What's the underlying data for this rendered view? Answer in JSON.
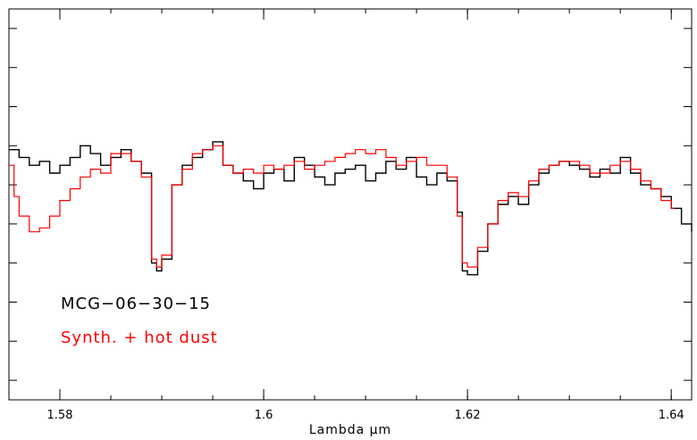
{
  "chart_data": {
    "type": "line",
    "title": "",
    "xlabel": "Lambda μm",
    "ylabel": "",
    "xlim": [
      1.575,
      1.642
    ],
    "ylim": [
      0,
      1
    ],
    "x_ticks": [
      {
        "value": 1.58,
        "label": "1.58"
      },
      {
        "value": 1.6,
        "label": "1.6"
      },
      {
        "value": 1.62,
        "label": "1.62"
      },
      {
        "value": 1.64,
        "label": "1.64"
      }
    ],
    "x_minor_step": 0.005,
    "y_ticks": [
      0.05,
      0.15,
      0.25,
      0.35,
      0.45,
      0.55,
      0.65,
      0.75,
      0.85,
      0.95
    ],
    "grid": false,
    "legend_position": "bottom-left",
    "annotations": [
      {
        "text": "MCG−06−30−15",
        "color": "#000000"
      },
      {
        "text": "Synth. + hot dust",
        "color": "#ff0000"
      }
    ],
    "series": [
      {
        "name": "MCG−06−30−15",
        "color": "#000000",
        "style": "steps",
        "points": [
          [
            1.575,
            0.64
          ],
          [
            1.576,
            0.62
          ],
          [
            1.577,
            0.6
          ],
          [
            1.578,
            0.61
          ],
          [
            1.579,
            0.58
          ],
          [
            1.58,
            0.6
          ],
          [
            1.581,
            0.62
          ],
          [
            1.582,
            0.65
          ],
          [
            1.583,
            0.63
          ],
          [
            1.584,
            0.6
          ],
          [
            1.585,
            0.62
          ],
          [
            1.586,
            0.64
          ],
          [
            1.587,
            0.61
          ],
          [
            1.588,
            0.58
          ],
          [
            1.589,
            0.35
          ],
          [
            1.5895,
            0.33
          ],
          [
            1.59,
            0.36
          ],
          [
            1.591,
            0.55
          ],
          [
            1.592,
            0.6
          ],
          [
            1.593,
            0.62
          ],
          [
            1.594,
            0.64
          ],
          [
            1.595,
            0.66
          ],
          [
            1.596,
            0.6
          ],
          [
            1.597,
            0.58
          ],
          [
            1.598,
            0.56
          ],
          [
            1.599,
            0.54
          ],
          [
            1.6,
            0.58
          ],
          [
            1.601,
            0.59
          ],
          [
            1.602,
            0.56
          ],
          [
            1.603,
            0.62
          ],
          [
            1.604,
            0.6
          ],
          [
            1.605,
            0.57
          ],
          [
            1.606,
            0.55
          ],
          [
            1.607,
            0.58
          ],
          [
            1.608,
            0.59
          ],
          [
            1.609,
            0.6
          ],
          [
            1.61,
            0.56
          ],
          [
            1.611,
            0.58
          ],
          [
            1.612,
            0.61
          ],
          [
            1.613,
            0.59
          ],
          [
            1.614,
            0.62
          ],
          [
            1.615,
            0.57
          ],
          [
            1.616,
            0.55
          ],
          [
            1.617,
            0.58
          ],
          [
            1.618,
            0.56
          ],
          [
            1.619,
            0.48
          ],
          [
            1.6195,
            0.33
          ],
          [
            1.62,
            0.32
          ],
          [
            1.621,
            0.38
          ],
          [
            1.622,
            0.45
          ],
          [
            1.623,
            0.5
          ],
          [
            1.624,
            0.52
          ],
          [
            1.625,
            0.5
          ],
          [
            1.626,
            0.55
          ],
          [
            1.627,
            0.58
          ],
          [
            1.628,
            0.6
          ],
          [
            1.629,
            0.61
          ],
          [
            1.63,
            0.6
          ],
          [
            1.631,
            0.59
          ],
          [
            1.632,
            0.57
          ],
          [
            1.633,
            0.59
          ],
          [
            1.634,
            0.58
          ],
          [
            1.635,
            0.62
          ],
          [
            1.636,
            0.58
          ],
          [
            1.637,
            0.55
          ],
          [
            1.638,
            0.54
          ],
          [
            1.639,
            0.52
          ],
          [
            1.64,
            0.49
          ],
          [
            1.641,
            0.45
          ],
          [
            1.642,
            0.43
          ]
        ]
      },
      {
        "name": "Synth. + hot dust",
        "color": "#ff0000",
        "style": "steps",
        "points": [
          [
            1.575,
            0.6
          ],
          [
            1.5755,
            0.52
          ],
          [
            1.576,
            0.47
          ],
          [
            1.577,
            0.43
          ],
          [
            1.578,
            0.44
          ],
          [
            1.579,
            0.47
          ],
          [
            1.58,
            0.51
          ],
          [
            1.581,
            0.54
          ],
          [
            1.582,
            0.57
          ],
          [
            1.583,
            0.59
          ],
          [
            1.584,
            0.58
          ],
          [
            1.585,
            0.63
          ],
          [
            1.586,
            0.63
          ],
          [
            1.587,
            0.61
          ],
          [
            1.588,
            0.57
          ],
          [
            1.589,
            0.36
          ],
          [
            1.5895,
            0.34
          ],
          [
            1.59,
            0.37
          ],
          [
            1.591,
            0.55
          ],
          [
            1.592,
            0.59
          ],
          [
            1.593,
            0.63
          ],
          [
            1.594,
            0.64
          ],
          [
            1.595,
            0.65
          ],
          [
            1.596,
            0.6
          ],
          [
            1.597,
            0.58
          ],
          [
            1.598,
            0.59
          ],
          [
            1.599,
            0.58
          ],
          [
            1.6,
            0.6
          ],
          [
            1.601,
            0.59
          ],
          [
            1.602,
            0.6
          ],
          [
            1.603,
            0.61
          ],
          [
            1.604,
            0.59
          ],
          [
            1.605,
            0.6
          ],
          [
            1.606,
            0.61
          ],
          [
            1.607,
            0.62
          ],
          [
            1.608,
            0.63
          ],
          [
            1.609,
            0.64
          ],
          [
            1.61,
            0.63
          ],
          [
            1.611,
            0.64
          ],
          [
            1.612,
            0.62
          ],
          [
            1.613,
            0.6
          ],
          [
            1.614,
            0.61
          ],
          [
            1.615,
            0.62
          ],
          [
            1.616,
            0.6
          ],
          [
            1.617,
            0.6
          ],
          [
            1.618,
            0.57
          ],
          [
            1.619,
            0.47
          ],
          [
            1.6195,
            0.35
          ],
          [
            1.62,
            0.34
          ],
          [
            1.621,
            0.39
          ],
          [
            1.622,
            0.45
          ],
          [
            1.623,
            0.51
          ],
          [
            1.624,
            0.53
          ],
          [
            1.625,
            0.52
          ],
          [
            1.626,
            0.56
          ],
          [
            1.627,
            0.59
          ],
          [
            1.628,
            0.6
          ],
          [
            1.629,
            0.61
          ],
          [
            1.63,
            0.61
          ],
          [
            1.631,
            0.6
          ],
          [
            1.632,
            0.58
          ],
          [
            1.633,
            0.58
          ],
          [
            1.634,
            0.6
          ],
          [
            1.635,
            0.61
          ],
          [
            1.636,
            0.59
          ],
          [
            1.637,
            0.56
          ],
          [
            1.638,
            0.54
          ],
          [
            1.639,
            0.51
          ],
          [
            1.64,
            0.49
          ]
        ]
      }
    ]
  }
}
